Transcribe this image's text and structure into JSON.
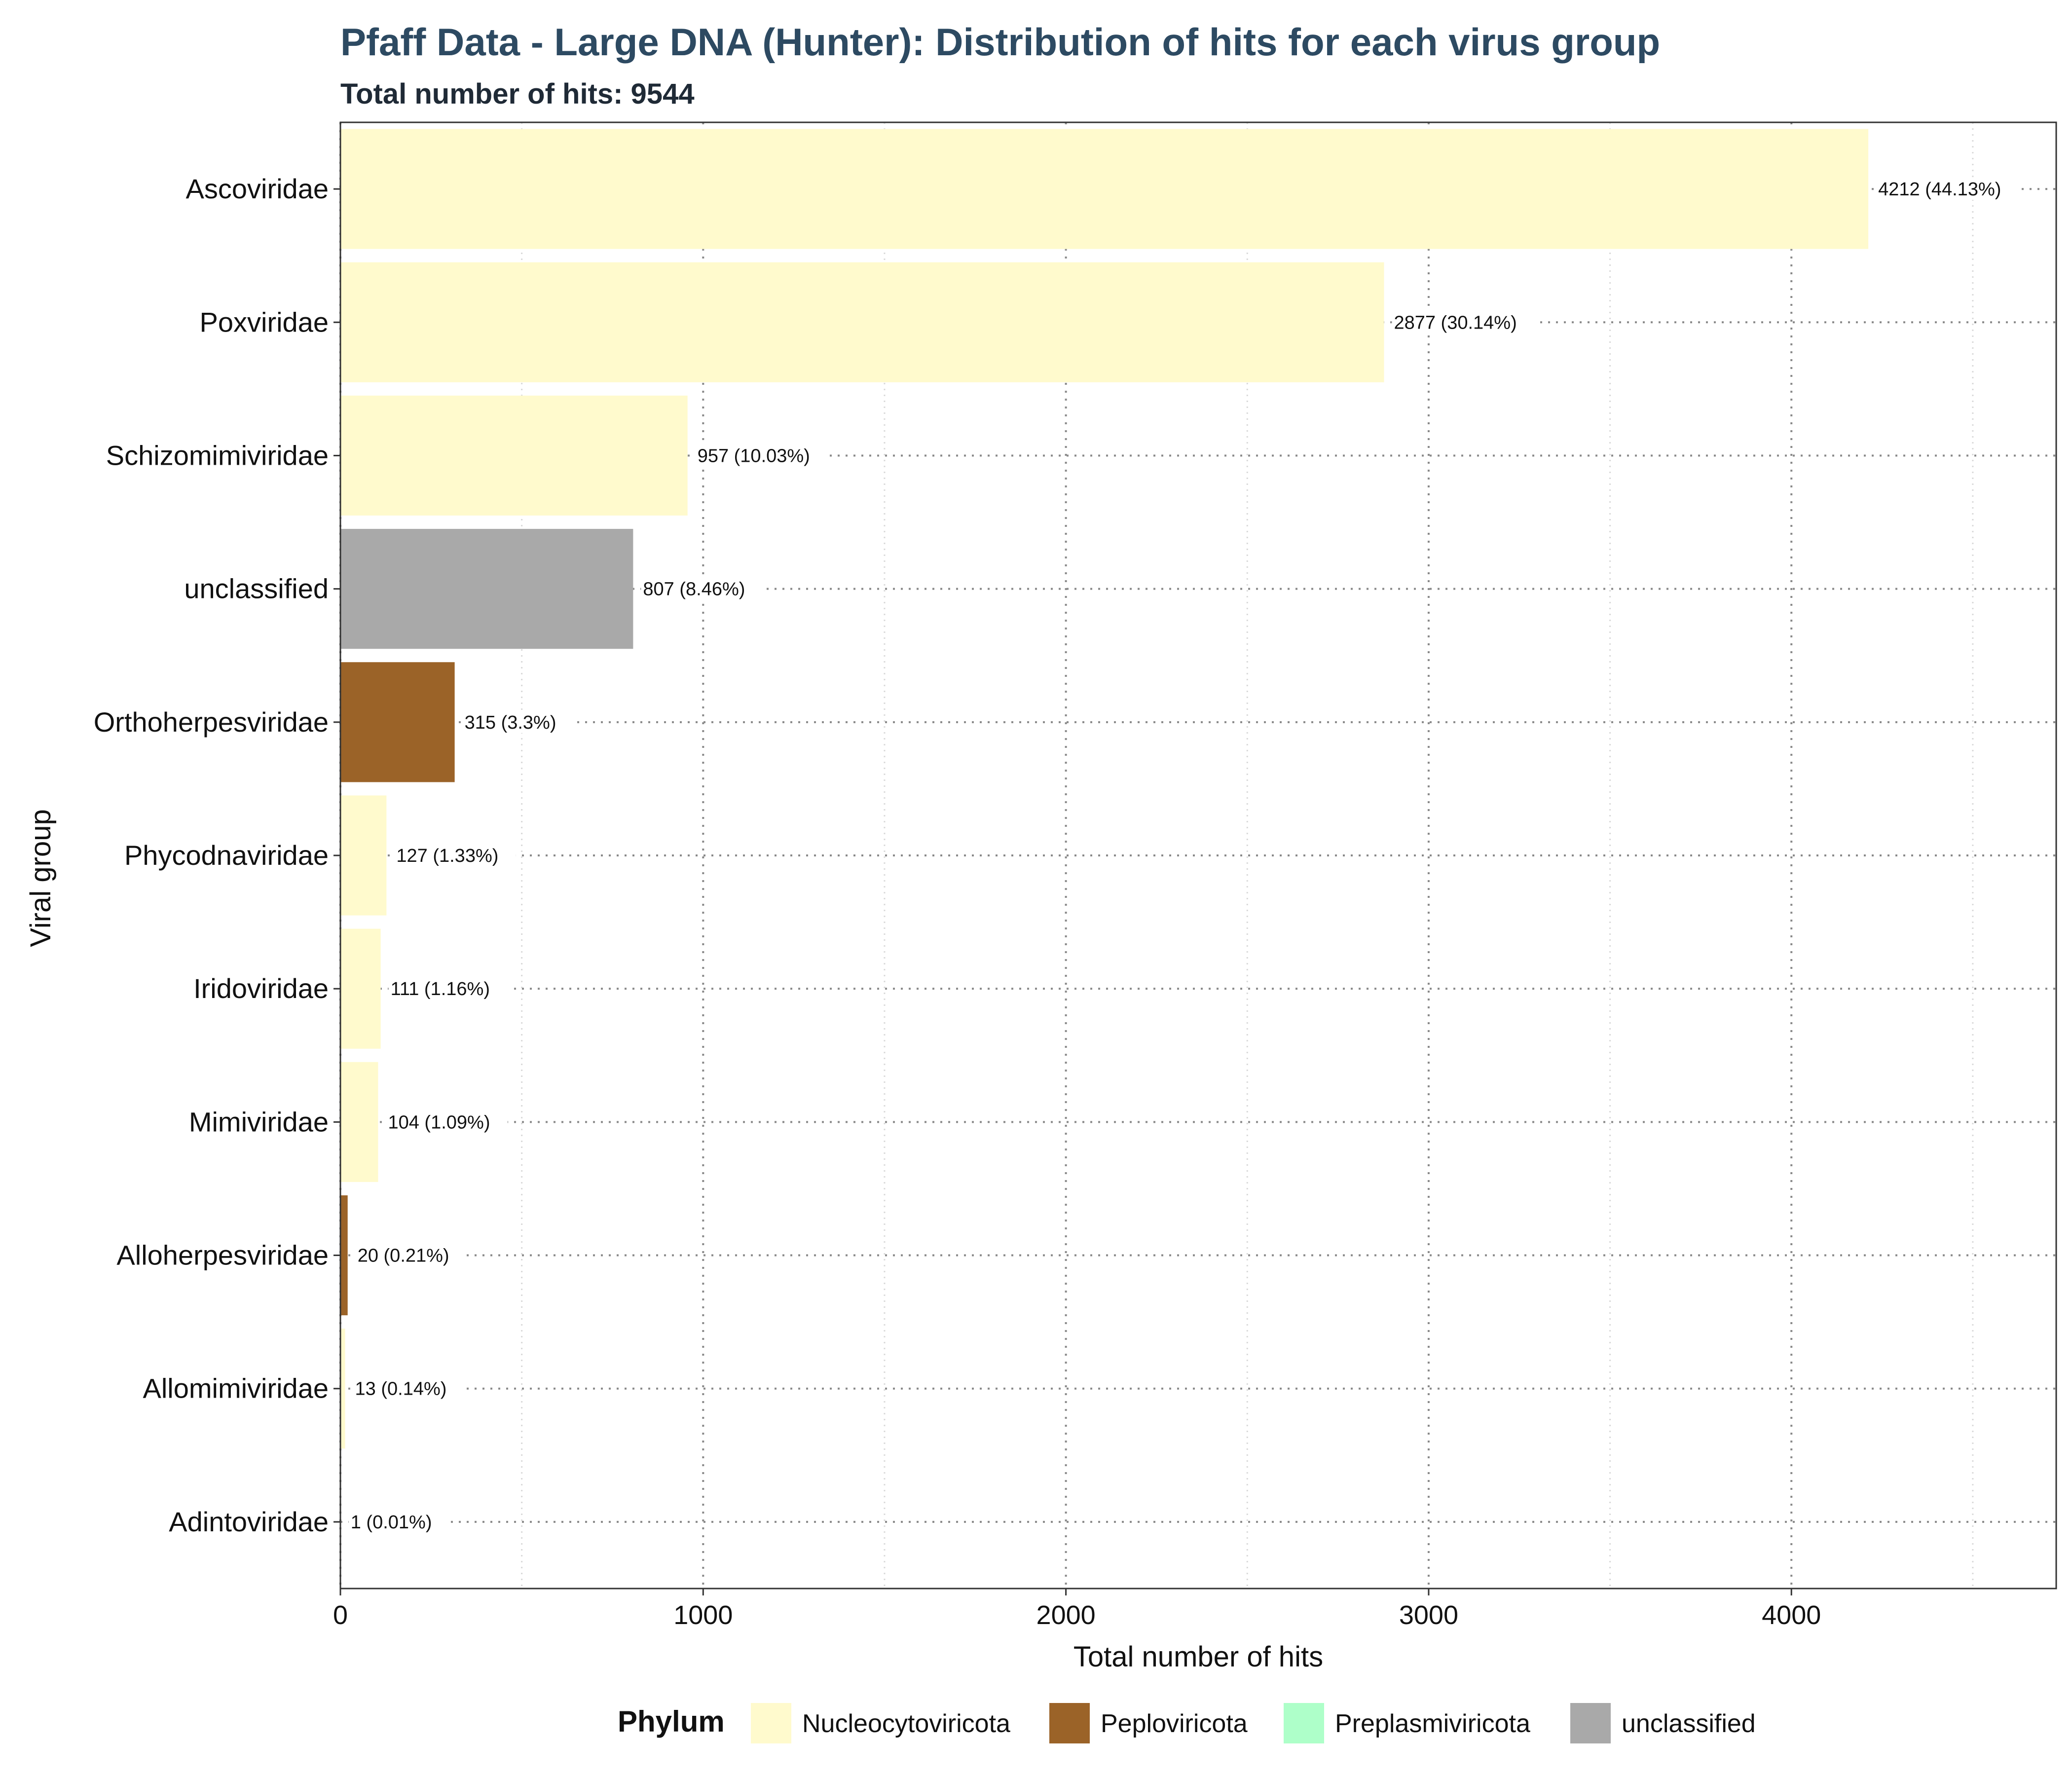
{
  "title": "Pfaff Data - Large DNA (Hunter): Distribution of hits for each virus group",
  "subtitle": "Total number of hits: 9544",
  "chart_data": {
    "type": "bar",
    "orientation": "horizontal",
    "categories": [
      "Ascoviridae",
      "Poxviridae",
      "Schizomimiviridae",
      "unclassified",
      "Orthoherpesviridae",
      "Phycodnaviridae",
      "Iridoviridae",
      "Mimiviridae",
      "Alloherpesviridae",
      "Allomimiviridae",
      "Adintoviridae"
    ],
    "values": [
      4212,
      2877,
      957,
      807,
      315,
      127,
      111,
      104,
      20,
      13,
      1
    ],
    "phylum": [
      "Nucleocytoviricota",
      "Nucleocytoviricota",
      "Nucleocytoviricota",
      "unclassified",
      "Peploviricota",
      "Nucleocytoviricota",
      "Nucleocytoviricota",
      "Nucleocytoviricota",
      "Peploviricota",
      "Nucleocytoviricota",
      "Preplasmiviricota"
    ],
    "data_labels": [
      "4212 (44.13%)",
      "2877 (30.14%)",
      "957 (10.03%)",
      "807 (8.46%)",
      "315 (3.3%)",
      "127 (1.33%)",
      "111 (1.16%)",
      "104 (1.09%)",
      "20 (0.21%)",
      "13 (0.14%)",
      "1 (0.01%)"
    ],
    "xlabel": "Total number of hits",
    "ylabel": "Viral group",
    "xlim": [
      0,
      4730
    ],
    "xticks": [
      0,
      1000,
      2000,
      3000,
      4000
    ],
    "xtick_labels": [
      "0",
      "1000",
      "2000",
      "3000",
      "4000"
    ],
    "grid": true,
    "legend": {
      "title": "Phylum",
      "placement": "bottom",
      "entries": [
        {
          "label": "Nucleocytoviricota",
          "color": "#fffacd"
        },
        {
          "label": "Peploviricota",
          "color": "#9b6328"
        },
        {
          "label": "Preplasmiviricota",
          "color": "#aeffc9"
        },
        {
          "label": "unclassified",
          "color": "#a9a9a9"
        }
      ]
    },
    "colors": {
      "Nucleocytoviricota": "#fffacd",
      "Peploviricota": "#9b6328",
      "Preplasmiviricota": "#aeffc9",
      "unclassified": "#a9a9a9"
    }
  }
}
